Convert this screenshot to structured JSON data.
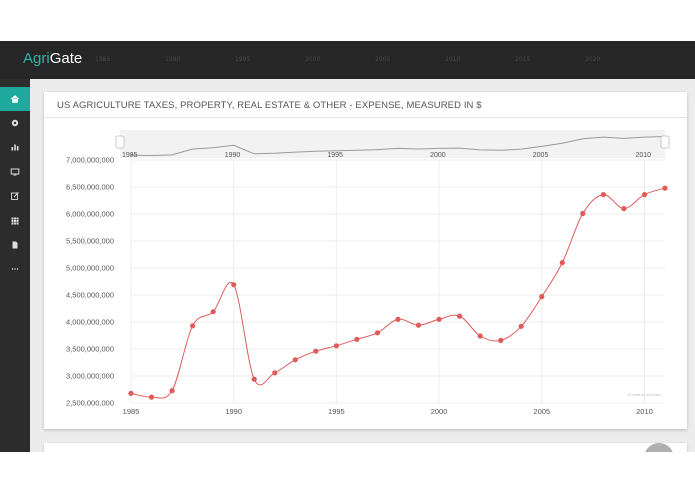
{
  "app": {
    "brand_agri": "Agri",
    "brand_gate": "Gate",
    "topbar_year_labels": [
      "1985",
      "1990",
      "1995",
      "2000",
      "2005",
      "2010",
      "2015",
      "2020"
    ]
  },
  "sidebar": {
    "items": [
      {
        "icon": "home-icon",
        "active": true
      },
      {
        "icon": "gear-icon",
        "active": false
      },
      {
        "icon": "bar-chart-icon",
        "active": false
      },
      {
        "icon": "monitor-icon",
        "active": false
      },
      {
        "icon": "edit-icon",
        "active": false
      },
      {
        "icon": "grid-icon",
        "active": false
      },
      {
        "icon": "document-icon",
        "active": false
      },
      {
        "icon": "more-icon",
        "active": false
      }
    ]
  },
  "card": {
    "title": "US AGRICULTURE TAXES, PROPERTY, REAL ESTATE & OTHER - EXPENSE, MEASURED IN $"
  },
  "colors": {
    "accent": "#1fa89c",
    "series": "#e05a5a",
    "topbar": "#262626",
    "sidebar": "#2c2c2c"
  },
  "chart_data": {
    "type": "line",
    "title": "US AGRICULTURE TAXES, PROPERTY, REAL ESTATE & OTHER - EXPENSE, MEASURED IN $",
    "xlabel": "",
    "ylabel": "",
    "x": [
      1985,
      1986,
      1987,
      1988,
      1989,
      1990,
      1991,
      1992,
      1993,
      1994,
      1995,
      1996,
      1997,
      1998,
      1999,
      2000,
      2001,
      2002,
      2003,
      2004,
      2005,
      2006,
      2007,
      2008,
      2009,
      2010,
      2011
    ],
    "series": [
      {
        "values": [
          2680000000,
          2610000000,
          2730000000,
          3930000000,
          4190000000,
          4690000000,
          2940000000,
          3060000000,
          3300000000,
          3460000000,
          3560000000,
          3680000000,
          3800000000,
          4050000000,
          3940000000,
          4050000000,
          4110000000,
          3740000000,
          3660000000,
          3920000000,
          4470000000,
          5100000000,
          6010000000,
          6360000000,
          6100000000,
          6360000000,
          6480000000
        ]
      }
    ],
    "ylim": [
      2500000000,
      7000000000
    ],
    "yticks": [
      2500000000,
      3000000000,
      3500000000,
      4000000000,
      4500000000,
      5000000000,
      5500000000,
      6000000000,
      6500000000,
      7000000000
    ],
    "xticks": [
      1985,
      1990,
      1995,
      2000,
      2005,
      2010
    ],
    "ytick_labels": [
      "2,500,000,000",
      "3,000,000,000",
      "3,500,000,000",
      "4,000,000,000",
      "4,500,000,000",
      "5,000,000,000",
      "5,500,000,000",
      "6,000,000,000",
      "6,500,000,000",
      "7,000,000,000"
    ],
    "xtick_labels": [
      "1985",
      "1990",
      "1995",
      "2000",
      "2005",
      "2010"
    ],
    "navigator_xtick_labels": [
      "1985",
      "1990",
      "1995",
      "2000",
      "2005",
      "2010"
    ],
    "grid": true,
    "legend": "none",
    "credits": "JS chart by amCharts"
  }
}
